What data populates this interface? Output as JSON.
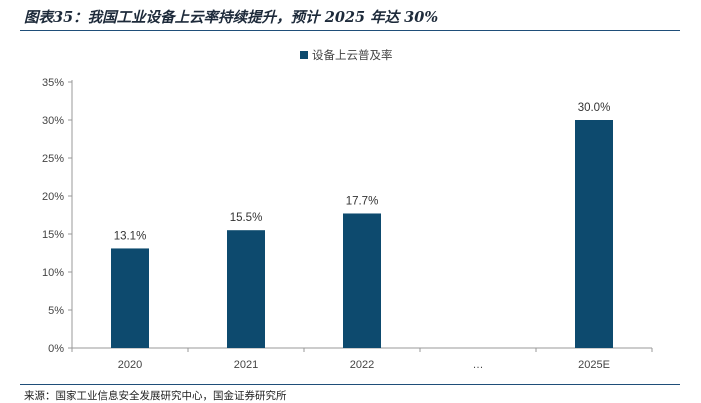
{
  "figure": {
    "title": "图表35：我国工业设备上云率持续提升，预计 2025 年达 30%",
    "source": "来源：国家工业信息安全发展研究中心，国金证券研究所"
  },
  "chart_data": {
    "type": "bar",
    "categories": [
      "2020",
      "2021",
      "2022",
      "…",
      "2025E"
    ],
    "series": [
      {
        "name": "设备上云普及率",
        "values": [
          13.1,
          15.5,
          17.7,
          null,
          30.0
        ],
        "labels": [
          "13.1%",
          "15.5%",
          "17.7%",
          "",
          "30.0%"
        ],
        "color": "#0d4a6e"
      }
    ],
    "ylim": [
      0,
      35
    ],
    "yticks": [
      0,
      5,
      10,
      15,
      20,
      25,
      30,
      35
    ],
    "ytick_labels": [
      "0%",
      "5%",
      "10%",
      "15%",
      "20%",
      "25%",
      "30%",
      "35%"
    ],
    "legend_position": "top",
    "grid": false
  }
}
